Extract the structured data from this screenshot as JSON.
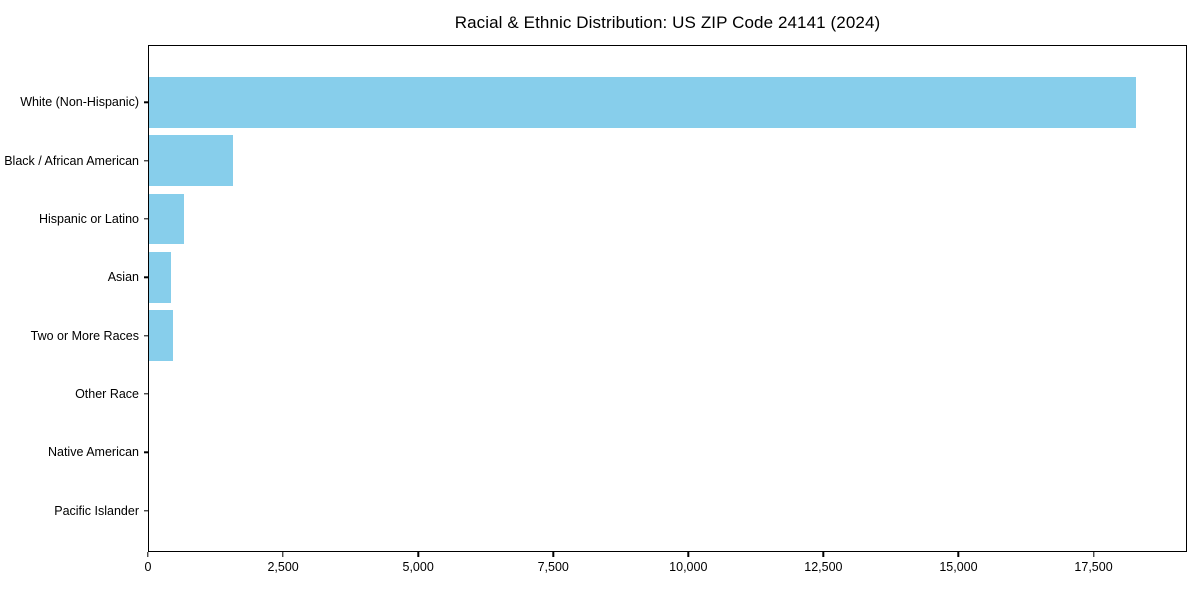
{
  "header": {
    "title": "Racial & Ethnic Distribution: US ZIP Code 24141 (2024)"
  },
  "colors": {
    "bar": "#87CEEB",
    "axis": "#000000",
    "background": "#ffffff",
    "text": "#000000"
  },
  "chart_data": {
    "type": "bar",
    "orientation": "horizontal",
    "title": "Racial & Ethnic Distribution: US ZIP Code 24141 (2024)",
    "xlabel": "",
    "ylabel": "",
    "categories": [
      "White (Non-Hispanic)",
      "Black / African American",
      "Hispanic or Latino",
      "Asian",
      "Two or More Races",
      "Other Race",
      "Native American",
      "Pacific Islander"
    ],
    "values": [
      18300,
      1550,
      650,
      410,
      440,
      0,
      0,
      0
    ],
    "xlim": [
      0,
      19230
    ],
    "xticks": [
      0,
      2500,
      5000,
      7500,
      10000,
      12500,
      15000,
      17500
    ],
    "xtick_labels": [
      "0",
      "2,500",
      "5,000",
      "7,500",
      "10,000",
      "12,500",
      "15,000",
      "17,500"
    ],
    "bar_color": "#87CEEB",
    "grid": false,
    "legend": null,
    "plot_border": true
  }
}
